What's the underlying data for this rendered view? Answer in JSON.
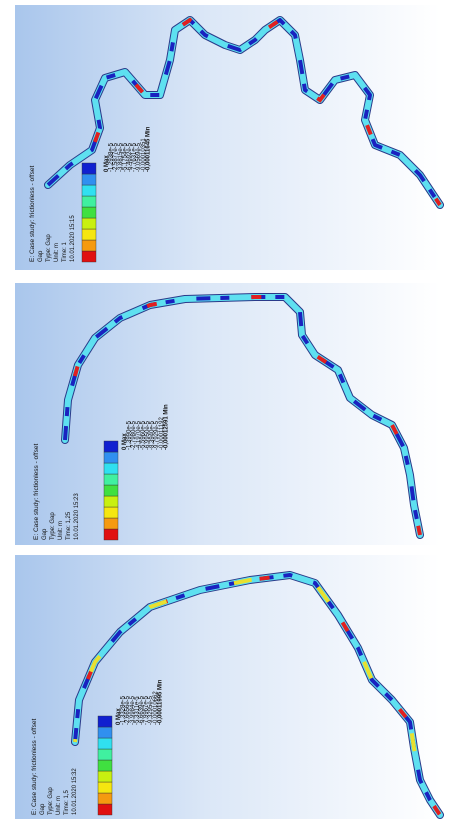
{
  "panels": [
    {
      "title": "E: Case study: frictionless - offset",
      "lines": [
        "Gap",
        "Type: Gap",
        "Unit: m",
        "Time: 1",
        "10.01.2020 15:15"
      ],
      "legend": [
        "0 Max",
        "-1,2938e-5",
        "-2,5877e-5",
        "-3,8815e-5",
        "-5,1754e-5",
        "-6,4692e-5",
        "-7,7631e-5",
        "-9,0569e-5",
        "-0,00010351",
        "-0,00011645 Min"
      ]
    },
    {
      "title": "E: Case study: frictionless - offset",
      "lines": [
        "Gap",
        "Type: Gap",
        "Unit: m",
        "Time: 1,25",
        "10.01.2020 15:23"
      ],
      "legend": [
        "0 Max",
        "-1,3990e-5",
        "-2,7980e-5",
        "-4,1970e-5",
        "-5,5960e-5",
        "-6,9950e-5",
        "-8,3940e-5",
        "-9,7929e-5",
        "-0,00011192",
        "-0,00012591 Min"
      ]
    },
    {
      "title": "E: Case study: frictionless - offset",
      "lines": [
        "Gap",
        "Type: Gap",
        "Unit: m",
        "Time: 1,5",
        "10.01.2020 15:32"
      ],
      "legend": [
        "0 Max",
        "-1,3328e-5",
        "-2,6656e-5",
        "-3,9984e-5",
        "-5,3311e-5",
        "-6,6639e-5",
        "-7,9967e-5",
        "-9,3295e-5",
        "-0,00010662",
        "-0,00011995 Min"
      ]
    }
  ]
}
